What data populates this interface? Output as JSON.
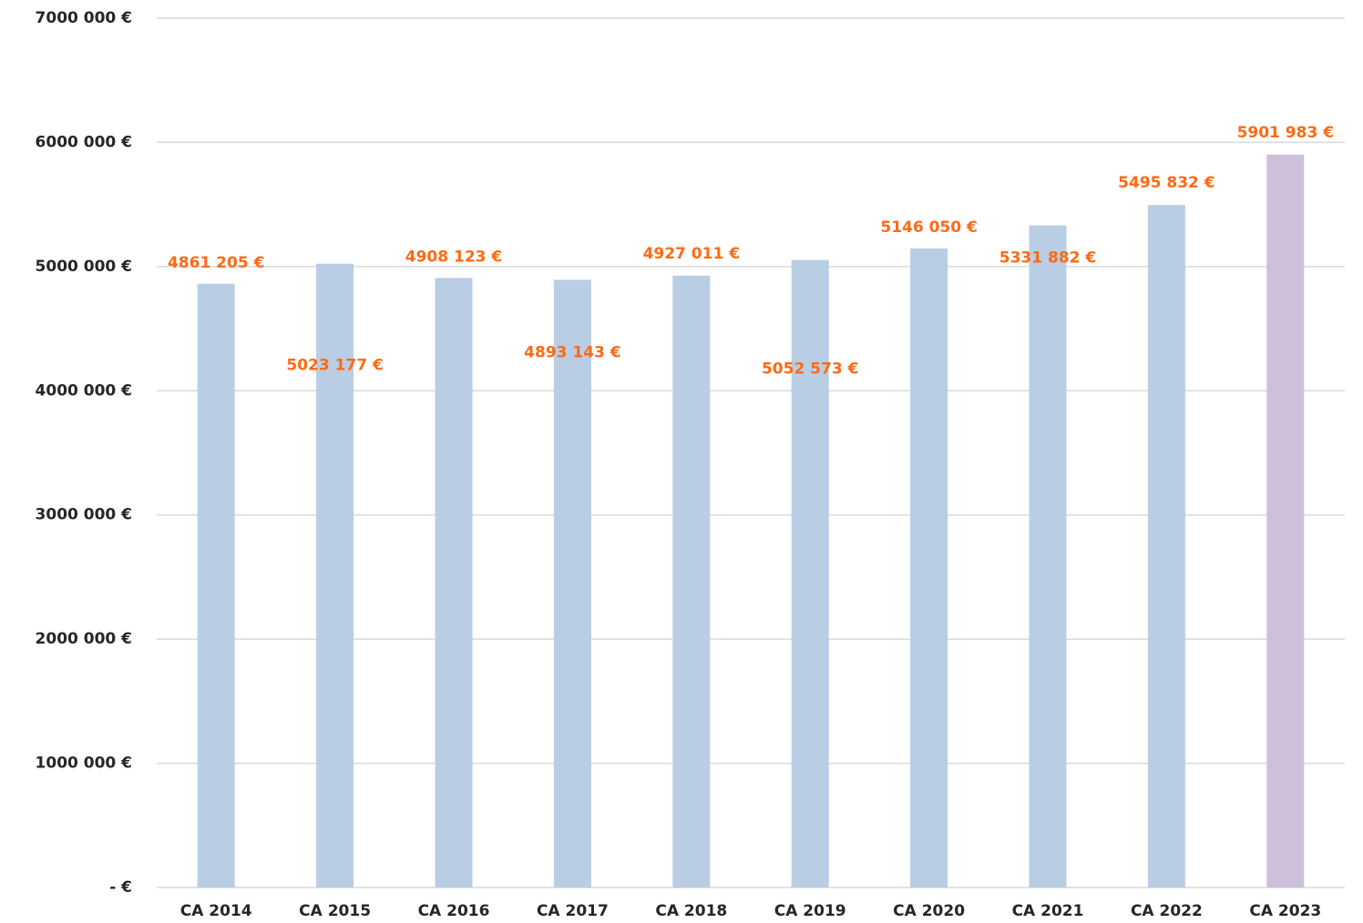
{
  "chart_data": {
    "type": "bar",
    "categories": [
      "CA 2014",
      "CA 2015",
      "CA 2016",
      "CA 2017",
      "CA 2018",
      "CA 2019",
      "CA 2020",
      "CA 2021",
      "CA 2022",
      "CA 2023"
    ],
    "values": [
      4861205,
      5023177,
      4908123,
      4893143,
      4927011,
      5052573,
      5146050,
      5331882,
      5495832,
      5901983
    ],
    "value_labels": [
      "4861 205 €",
      "5023 177 €",
      "4908 123 €",
      "4893 143 €",
      "4927 011 €",
      "5052 573 €",
      "5146 050 €",
      "5331 882 €",
      "5495 832 €",
      "5901 983 €"
    ],
    "colors": [
      "#b9cde5",
      "#b9cde5",
      "#b9cde5",
      "#b9cde5",
      "#b9cde5",
      "#b9cde5",
      "#b9cde5",
      "#b9cde5",
      "#b9cde5",
      "#ccc0da"
    ],
    "ylim": [
      0,
      7000000
    ],
    "yticks": [
      {
        "value": 0,
        "label": "- €"
      },
      {
        "value": 1000000,
        "label": "1000 000 €"
      },
      {
        "value": 2000000,
        "label": "2000 000 €"
      },
      {
        "value": 3000000,
        "label": "3000 000 €"
      },
      {
        "value": 4000000,
        "label": "4000 000 €"
      },
      {
        "value": 5000000,
        "label": "5000 000 €"
      },
      {
        "value": 6000000,
        "label": "6000 000 €"
      },
      {
        "value": 7000000,
        "label": "7000 000 €"
      }
    ],
    "grid": true
  }
}
